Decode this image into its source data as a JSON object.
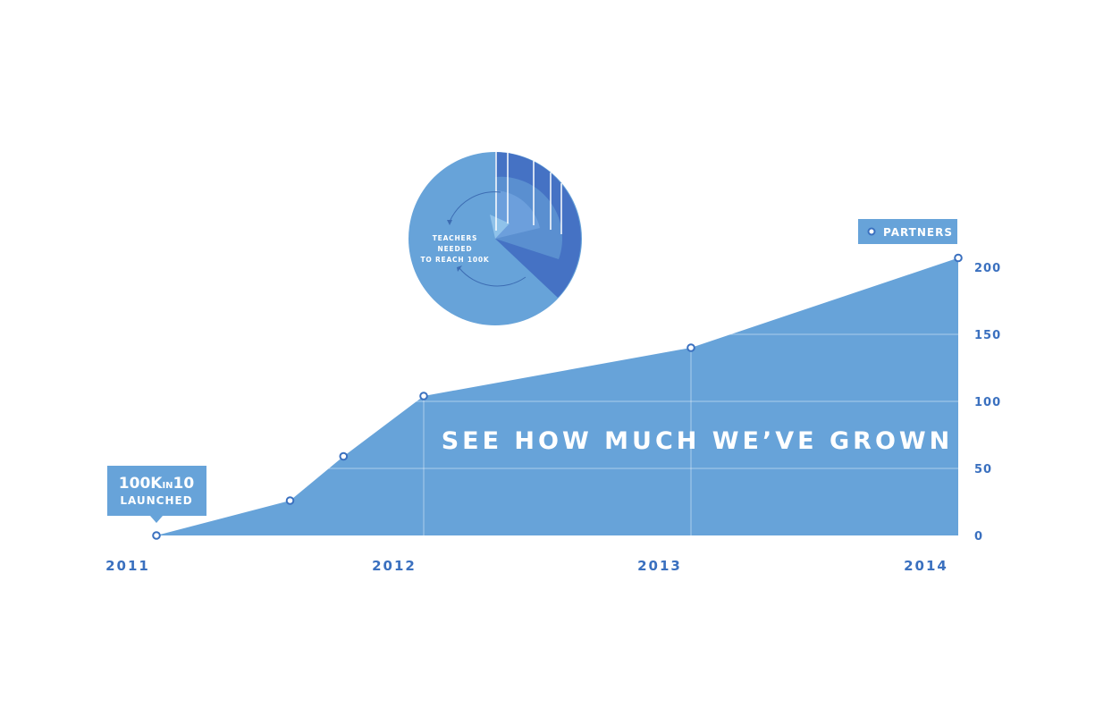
{
  "chart_data": {
    "type": "area",
    "title": "SEE HOW MUCH WE’VE GROWN",
    "x": [
      2011.0,
      2011.5,
      2011.7,
      2012.0,
      2013.0,
      2014.0
    ],
    "series": [
      {
        "name": "PARTNERS",
        "values": [
          0,
          26,
          59,
          104,
          140,
          207
        ]
      }
    ],
    "xticks": [
      "2011",
      "2012",
      "2013",
      "2014"
    ],
    "yticks": [
      "0",
      "50",
      "100",
      "150",
      "200"
    ],
    "ylim": [
      0,
      200
    ],
    "grid": true,
    "legend": "top-right"
  },
  "launch_callout": {
    "line1_big": "100K",
    "line1_small": "IN",
    "line1_end": "10",
    "line2": "LAUNCHED"
  },
  "pie": {
    "label_lines": [
      "TEACHERS",
      "NEEDED",
      "TO REACH 100K"
    ]
  },
  "colors": {
    "area": "#67a3d9",
    "axis_text": "#3a70bf",
    "pie_light": "#67a3d9",
    "pie_mid": "#5a8fd0",
    "pie_dark": "#4572c4",
    "pie_pale": "#8fc2ea"
  }
}
